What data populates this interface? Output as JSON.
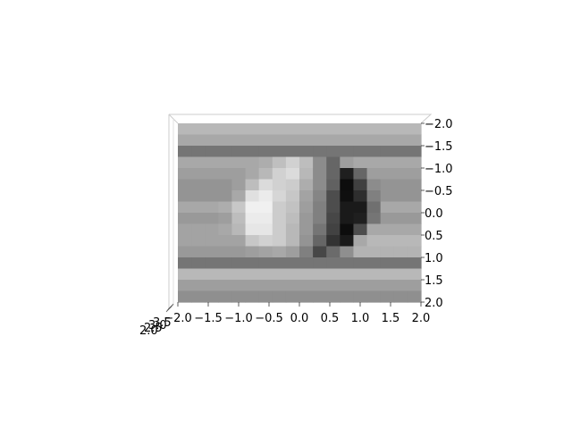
{
  "chart_data": {
    "type": "heatmap",
    "view": "3d surface, top-down view",
    "colormap": "grayscale",
    "title": "",
    "xlabel": "",
    "ylabel": "",
    "xlim": [
      -2.0,
      2.0
    ],
    "ylim": [
      -2.0,
      2.0
    ],
    "x_ticks": [
      "−2.0",
      "−1.5",
      "−1.0",
      "−0.5",
      "0.0",
      "0.5",
      "1.0",
      "1.5",
      "2.0"
    ],
    "y_ticks": [
      "−2.0",
      "−1.5",
      "−1.0",
      "−0.5",
      "0.0",
      "0.5",
      "1.0",
      "1.5",
      "2.0"
    ],
    "z_ticks_overlapping": [
      "2.0",
      "2.5",
      "3.0",
      "3.5"
    ],
    "grid": true,
    "columns": 18,
    "rows": 16,
    "intensity": [
      [
        0.72,
        0.72,
        0.72,
        0.72,
        0.72,
        0.72,
        0.72,
        0.72,
        0.72,
        0.72,
        0.72,
        0.72,
        0.72,
        0.72,
        0.72,
        0.72,
        0.72,
        0.72
      ],
      [
        0.66,
        0.66,
        0.66,
        0.66,
        0.66,
        0.66,
        0.66,
        0.66,
        0.66,
        0.66,
        0.66,
        0.66,
        0.66,
        0.66,
        0.66,
        0.66,
        0.66,
        0.66
      ],
      [
        0.46,
        0.46,
        0.46,
        0.46,
        0.46,
        0.46,
        0.46,
        0.46,
        0.46,
        0.46,
        0.46,
        0.46,
        0.46,
        0.46,
        0.46,
        0.46,
        0.46,
        0.46
      ],
      [
        0.66,
        0.66,
        0.66,
        0.66,
        0.66,
        0.66,
        0.68,
        0.75,
        0.82,
        0.74,
        0.55,
        0.4,
        0.62,
        0.66,
        0.66,
        0.66,
        0.66,
        0.66
      ],
      [
        0.62,
        0.62,
        0.62,
        0.62,
        0.62,
        0.66,
        0.72,
        0.82,
        0.86,
        0.72,
        0.55,
        0.4,
        0.12,
        0.4,
        0.62,
        0.62,
        0.62,
        0.62
      ],
      [
        0.58,
        0.58,
        0.58,
        0.58,
        0.62,
        0.74,
        0.86,
        0.82,
        0.8,
        0.68,
        0.55,
        0.38,
        0.05,
        0.25,
        0.55,
        0.58,
        0.58,
        0.58
      ],
      [
        0.58,
        0.58,
        0.58,
        0.58,
        0.66,
        0.88,
        0.92,
        0.84,
        0.78,
        0.64,
        0.52,
        0.3,
        0.06,
        0.18,
        0.5,
        0.58,
        0.58,
        0.58
      ],
      [
        0.66,
        0.66,
        0.66,
        0.68,
        0.78,
        0.94,
        0.94,
        0.8,
        0.76,
        0.62,
        0.5,
        0.3,
        0.1,
        0.1,
        0.44,
        0.66,
        0.66,
        0.66
      ],
      [
        0.6,
        0.6,
        0.6,
        0.62,
        0.74,
        0.92,
        0.92,
        0.8,
        0.74,
        0.6,
        0.5,
        0.28,
        0.1,
        0.12,
        0.46,
        0.6,
        0.6,
        0.6
      ],
      [
        0.64,
        0.64,
        0.64,
        0.66,
        0.72,
        0.9,
        0.9,
        0.8,
        0.72,
        0.6,
        0.46,
        0.26,
        0.05,
        0.3,
        0.66,
        0.66,
        0.66,
        0.66
      ],
      [
        0.64,
        0.64,
        0.64,
        0.64,
        0.64,
        0.78,
        0.82,
        0.8,
        0.72,
        0.58,
        0.4,
        0.2,
        0.1,
        0.66,
        0.72,
        0.72,
        0.72,
        0.72
      ],
      [
        0.6,
        0.6,
        0.6,
        0.6,
        0.6,
        0.62,
        0.64,
        0.66,
        0.62,
        0.5,
        0.28,
        0.42,
        0.56,
        0.7,
        0.7,
        0.7,
        0.7,
        0.7
      ],
      [
        0.46,
        0.46,
        0.46,
        0.46,
        0.46,
        0.46,
        0.46,
        0.46,
        0.46,
        0.46,
        0.46,
        0.46,
        0.46,
        0.46,
        0.46,
        0.46,
        0.46,
        0.46
      ],
      [
        0.72,
        0.72,
        0.72,
        0.72,
        0.72,
        0.72,
        0.72,
        0.72,
        0.72,
        0.72,
        0.72,
        0.72,
        0.72,
        0.72,
        0.72,
        0.72,
        0.72,
        0.72
      ],
      [
        0.62,
        0.62,
        0.62,
        0.62,
        0.62,
        0.62,
        0.62,
        0.62,
        0.62,
        0.62,
        0.62,
        0.62,
        0.62,
        0.62,
        0.62,
        0.62,
        0.62,
        0.62
      ],
      [
        0.56,
        0.56,
        0.56,
        0.56,
        0.56,
        0.56,
        0.56,
        0.56,
        0.56,
        0.56,
        0.56,
        0.56,
        0.56,
        0.56,
        0.56,
        0.56,
        0.56,
        0.56
      ]
    ]
  }
}
